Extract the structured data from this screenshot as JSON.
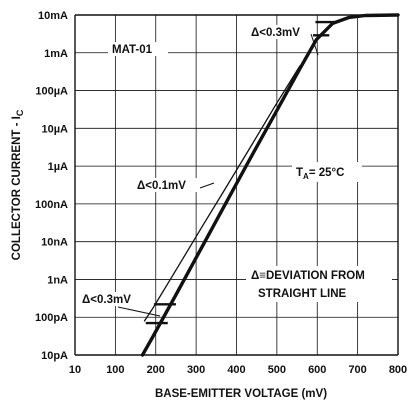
{
  "chart_data": {
    "type": "line",
    "xlabel": "BASE-EMITTER VOLTAGE (mV)",
    "ylabel_main": "COLLECTOR CURRENT - I",
    "ylabel_sub": "C",
    "x_scale": "linear",
    "y_scale": "log",
    "xlim": [
      10,
      800
    ],
    "ylim": [
      1e-11,
      0.01
    ],
    "grid": true,
    "x_tick_labels": [
      "10",
      "100",
      "200",
      "300",
      "400",
      "500",
      "600",
      "700",
      "800"
    ],
    "y_tick_labels": [
      "10pA",
      "100pA",
      "1nA",
      "10nA",
      "100nA",
      "1µA",
      "10µA",
      "100µA",
      "1mA",
      "10mA"
    ],
    "series": [
      {
        "name": "",
        "points": [
          [
            175,
            1e-11
          ],
          [
            200,
            3e-11
          ],
          [
            260,
            4.5e-10
          ],
          [
            320,
            7e-09
          ],
          [
            380,
            1.1e-07
          ],
          [
            440,
            1.7e-06
          ],
          [
            500,
            2.5e-05
          ],
          [
            560,
            0.00038
          ],
          [
            600,
            0.0022
          ],
          [
            640,
            0.006
          ],
          [
            680,
            0.0086
          ],
          [
            720,
            0.0097
          ],
          [
            800,
            0.01
          ]
        ]
      },
      {
        "name": "",
        "points": [
          [
            180,
            8e-11
          ],
          [
            200,
            1.7e-10
          ],
          [
            260,
            2e-09
          ],
          [
            320,
            2.4e-08
          ],
          [
            380,
            2.8e-07
          ],
          [
            440,
            3.3e-06
          ],
          [
            500,
            4e-05
          ],
          [
            550,
            0.0003
          ],
          [
            560,
            0.00045
          ]
        ]
      }
    ],
    "tick_marks": [
      {
        "x": 210,
        "y": 7e-11
      },
      {
        "x": 230,
        "y": 2.2e-10
      },
      {
        "x": 605,
        "y": 0.0029
      },
      {
        "x": 625,
        "y": 0.0065
      }
    ],
    "annotations": {
      "device": "MAT-01",
      "delta_top": "Δ<0.3mV",
      "delta_mid": "Δ<0.1mV",
      "delta_bottom": "Δ<0.3mV",
      "temp_main": "T",
      "temp_sub": "A",
      "temp_value": "= 25°C",
      "def_line1": "Δ≡DEVIATION FROM",
      "def_line2": "STRAIGHT LINE"
    }
  }
}
